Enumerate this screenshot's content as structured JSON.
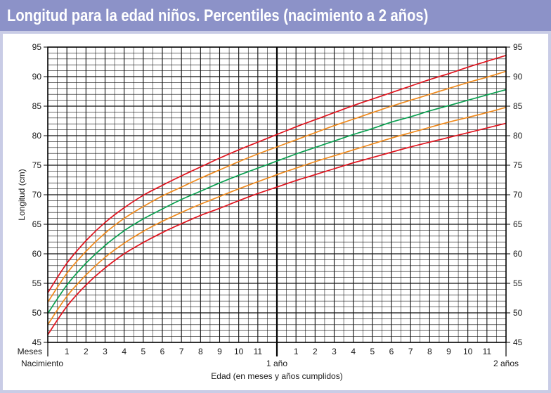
{
  "header": {
    "title": "Longitud para la edad niños. Percentiles (nacimiento a 2 años)"
  },
  "colors": {
    "header_bg": "#8c92c8",
    "frame_bg": "#c9cce6",
    "grid": "#111111"
  },
  "chart_data": {
    "type": "line",
    "title": "Longitud para la edad niños. Percentiles (nacimiento a 2 años)",
    "ylabel": "Longitud (cm)",
    "xlabel": "Edad (en meses y años cumplidos)",
    "xlim": [
      0,
      24
    ],
    "ylim": [
      45,
      95
    ],
    "y_ticks": [
      45,
      50,
      55,
      60,
      65,
      70,
      75,
      80,
      85,
      90,
      95
    ],
    "y_tick_labels": [
      "45",
      "50",
      "55",
      "60",
      "65",
      "70",
      "75",
      "80",
      "85",
      "90",
      "95"
    ],
    "x_month_labels": [
      {
        "x": 1,
        "label": "1"
      },
      {
        "x": 2,
        "label": "2"
      },
      {
        "x": 3,
        "label": "3"
      },
      {
        "x": 4,
        "label": "4"
      },
      {
        "x": 5,
        "label": "5"
      },
      {
        "x": 6,
        "label": "6"
      },
      {
        "x": 7,
        "label": "7"
      },
      {
        "x": 8,
        "label": "8"
      },
      {
        "x": 9,
        "label": "9"
      },
      {
        "x": 10,
        "label": "10"
      },
      {
        "x": 11,
        "label": "11"
      },
      {
        "x": 13,
        "label": "1"
      },
      {
        "x": 14,
        "label": "2"
      },
      {
        "x": 15,
        "label": "3"
      },
      {
        "x": 16,
        "label": "4"
      },
      {
        "x": 17,
        "label": "5"
      },
      {
        "x": 18,
        "label": "6"
      },
      {
        "x": 19,
        "label": "7"
      },
      {
        "x": 20,
        "label": "8"
      },
      {
        "x": 21,
        "label": "9"
      },
      {
        "x": 22,
        "label": "10"
      },
      {
        "x": 23,
        "label": "11"
      }
    ],
    "months_label": "Meses",
    "x_year_labels": [
      {
        "x": 0,
        "label": "Nacimiento"
      },
      {
        "x": 12,
        "label": "1 año"
      },
      {
        "x": 24,
        "label": "2 años"
      }
    ],
    "year_lines": [
      12
    ],
    "grid": true,
    "legend": "none",
    "x": [
      0,
      1,
      2,
      3,
      4,
      5,
      6,
      7,
      8,
      9,
      10,
      11,
      12,
      13,
      14,
      15,
      16,
      17,
      18,
      19,
      20,
      21,
      22,
      23,
      24
    ],
    "series": [
      {
        "color": "#e0141e",
        "values": [
          46.3,
          51.1,
          54.7,
          57.6,
          60.0,
          61.9,
          63.6,
          65.1,
          66.5,
          67.7,
          69.0,
          70.2,
          71.3,
          72.4,
          73.4,
          74.4,
          75.4,
          76.3,
          77.2,
          78.1,
          78.9,
          79.7,
          80.5,
          81.3,
          82.1
        ]
      },
      {
        "color": "#f08a1c",
        "values": [
          48.0,
          52.8,
          56.4,
          59.4,
          61.8,
          63.8,
          65.5,
          67.0,
          68.4,
          69.7,
          71.0,
          72.2,
          73.4,
          74.5,
          75.6,
          76.6,
          77.6,
          78.6,
          79.6,
          80.5,
          81.4,
          82.3,
          83.1,
          83.9,
          84.8
        ]
      },
      {
        "color": "#0aa050",
        "values": [
          49.9,
          54.7,
          58.4,
          61.4,
          63.9,
          65.9,
          67.6,
          69.2,
          70.6,
          72.0,
          73.3,
          74.5,
          75.7,
          76.9,
          78.0,
          79.1,
          80.2,
          81.2,
          82.3,
          83.2,
          84.2,
          85.1,
          86.0,
          86.9,
          87.8
        ]
      },
      {
        "color": "#f08a1c",
        "values": [
          51.8,
          56.7,
          60.4,
          63.5,
          66.0,
          68.0,
          69.8,
          71.3,
          72.8,
          74.2,
          75.6,
          76.9,
          78.1,
          79.3,
          80.5,
          81.7,
          82.8,
          83.9,
          85.0,
          86.0,
          87.0,
          88.0,
          89.0,
          89.9,
          90.9
        ]
      },
      {
        "color": "#e0141e",
        "values": [
          53.4,
          58.4,
          62.2,
          65.3,
          67.8,
          69.9,
          71.6,
          73.2,
          74.7,
          76.2,
          77.6,
          78.9,
          80.2,
          81.5,
          82.7,
          83.9,
          85.1,
          86.2,
          87.3,
          88.4,
          89.5,
          90.5,
          91.6,
          92.6,
          93.6
        ]
      }
    ]
  }
}
